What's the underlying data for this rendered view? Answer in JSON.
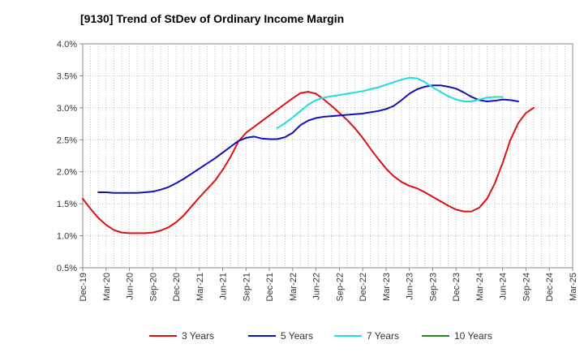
{
  "chart_data": {
    "type": "line",
    "title": "[9130]  Trend of StDev of Ordinary Income Margin",
    "xlabel": "",
    "ylabel": "",
    "ylim": [
      0.5,
      4.0
    ],
    "y_ticks": [
      "0.5%",
      "1.0%",
      "1.5%",
      "2.0%",
      "2.5%",
      "3.0%",
      "3.5%",
      "4.0%"
    ],
    "y_tick_values": [
      0.5,
      1.0,
      1.5,
      2.0,
      2.5,
      3.0,
      3.5,
      4.0
    ],
    "x_ticks": [
      "Dec-19",
      "Mar-20",
      "Jun-20",
      "Sep-20",
      "Dec-20",
      "Mar-21",
      "Jun-21",
      "Sep-21",
      "Dec-21",
      "Mar-22",
      "Jun-22",
      "Sep-22",
      "Dec-22",
      "Mar-23",
      "Jun-23",
      "Sep-23",
      "Dec-23",
      "Mar-24",
      "Jun-24",
      "Sep-24",
      "Dec-24",
      "Mar-25"
    ],
    "grid": true,
    "legend_position": "bottom",
    "series": [
      {
        "name": "3 Years",
        "color": "#dd1111",
        "start_index": 0,
        "values": [
          1.58,
          1.42,
          1.28,
          1.17,
          1.09,
          1.05,
          1.04,
          1.04,
          1.04,
          1.05,
          1.08,
          1.13,
          1.21,
          1.32,
          1.46,
          1.6,
          1.73,
          1.86,
          2.03,
          2.23,
          2.47,
          2.61,
          2.7,
          2.79,
          2.88,
          2.97,
          3.06,
          3.15,
          3.23,
          3.25,
          3.22,
          3.13,
          3.03,
          2.92,
          2.81,
          2.68,
          2.53,
          2.36,
          2.2,
          2.05,
          1.93,
          1.84,
          1.78,
          1.74,
          1.68,
          1.61,
          1.54,
          1.47,
          1.41,
          1.38,
          1.38,
          1.44,
          1.58,
          1.82,
          2.14,
          2.5,
          2.76,
          2.92,
          3.0
        ]
      },
      {
        "name": "5 Years",
        "color": "#1111bb",
        "start_index": 2,
        "values": [
          1.68,
          1.68,
          1.67,
          1.67,
          1.67,
          1.67,
          1.68,
          1.69,
          1.72,
          1.76,
          1.82,
          1.89,
          1.97,
          2.05,
          2.13,
          2.21,
          2.3,
          2.39,
          2.48,
          2.53,
          2.55,
          2.52,
          2.51,
          2.51,
          2.54,
          2.61,
          2.73,
          2.8,
          2.84,
          2.86,
          2.87,
          2.88,
          2.89,
          2.9,
          2.91,
          2.93,
          2.95,
          2.98,
          3.03,
          3.12,
          3.22,
          3.29,
          3.33,
          3.35,
          3.35,
          3.33,
          3.3,
          3.24,
          3.17,
          3.12,
          3.1,
          3.11,
          3.13,
          3.12,
          3.1
        ]
      },
      {
        "name": "7 Years",
        "color": "#22dddd",
        "start_index": 25,
        "values": [
          2.68,
          2.76,
          2.85,
          2.95,
          3.05,
          3.12,
          3.16,
          3.18,
          3.2,
          3.22,
          3.24,
          3.26,
          3.29,
          3.32,
          3.36,
          3.4,
          3.44,
          3.47,
          3.46,
          3.4,
          3.32,
          3.25,
          3.18,
          3.13,
          3.1,
          3.1,
          3.13,
          3.16,
          3.17,
          3.17
        ]
      },
      {
        "name": "10 Years",
        "color": "#228822",
        "start_index": 0,
        "values": []
      }
    ]
  }
}
